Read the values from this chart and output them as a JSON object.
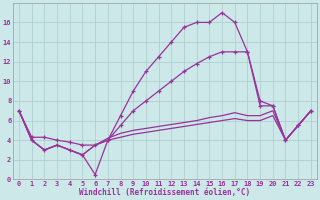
{
  "x": [
    0,
    1,
    2,
    3,
    4,
    5,
    6,
    7,
    8,
    9,
    10,
    11,
    12,
    13,
    14,
    15,
    16,
    17,
    18,
    19,
    20,
    21,
    22,
    23
  ],
  "line_zigzag": [
    7,
    4,
    3,
    3.5,
    3,
    2.5,
    0.5,
    4,
    6.5,
    9,
    11,
    12.5,
    14,
    15.5,
    16,
    16,
    17,
    16,
    13,
    8,
    7.5,
    4,
    5.5,
    7
  ],
  "line_upper_diag": [
    7,
    4.3,
    4.3,
    4.0,
    3.8,
    3.5,
    3.5,
    4.0,
    5.5,
    7.0,
    8.0,
    9.0,
    10.0,
    11.0,
    11.8,
    12.5,
    13.0,
    13.0,
    13.0,
    7.5,
    7.5,
    4,
    5.5,
    7
  ],
  "line_lower_diag1": [
    7,
    4,
    3,
    3.5,
    3,
    2.5,
    3.5,
    4.2,
    4.7,
    5.0,
    5.2,
    5.4,
    5.6,
    5.8,
    6.0,
    6.3,
    6.5,
    6.8,
    6.5,
    6.5,
    7.0,
    4,
    5.5,
    7
  ],
  "line_lower_diag2": [
    7,
    4,
    3,
    3.5,
    3,
    2.5,
    3.5,
    4.0,
    4.3,
    4.6,
    4.8,
    5.0,
    5.2,
    5.4,
    5.6,
    5.8,
    6.0,
    6.2,
    6.0,
    6.0,
    6.5,
    4,
    5.5,
    7
  ],
  "background_color": "#cce8e8",
  "grid_color": "#aacccc",
  "line_color": "#993399",
  "xlabel": "Windchill (Refroidissement éolien,°C)",
  "ylim": [
    0,
    18
  ],
  "xlim": [
    -0.5,
    23.5
  ],
  "yticks": [
    0,
    2,
    4,
    6,
    8,
    10,
    12,
    14,
    16
  ],
  "xticks": [
    0,
    1,
    2,
    3,
    4,
    5,
    6,
    7,
    8,
    9,
    10,
    11,
    12,
    13,
    14,
    15,
    16,
    17,
    18,
    19,
    20,
    21,
    22,
    23
  ]
}
